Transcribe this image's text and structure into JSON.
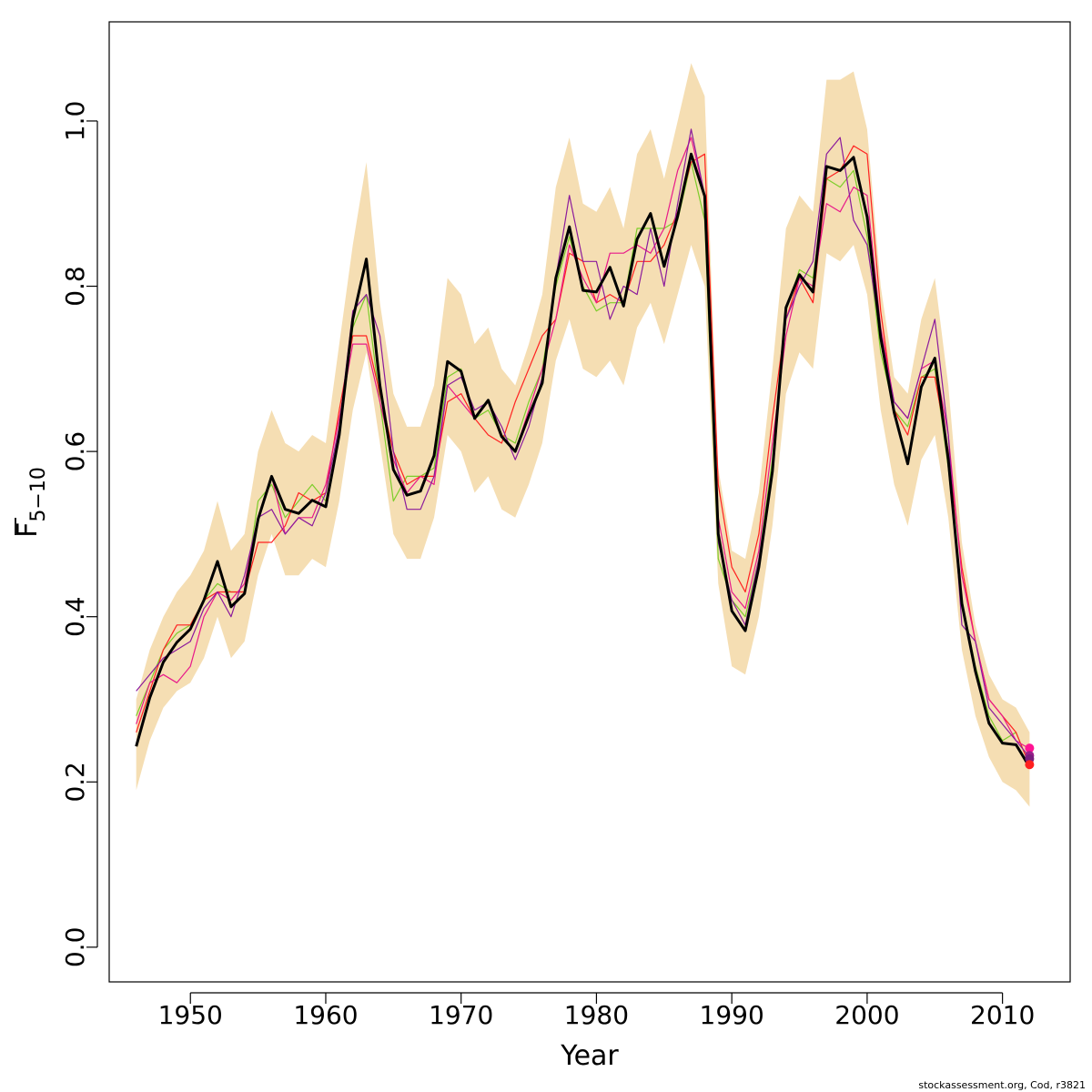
{
  "chart_data": {
    "type": "line",
    "xlabel": "Year",
    "ylabel": "F",
    "ylabel_subscript": "5−10",
    "xlim": [
      1944,
      2015
    ],
    "ylim": [
      -0.042,
      1.12
    ],
    "xticks": [
      1950,
      1960,
      1970,
      1980,
      1990,
      2000,
      2010
    ],
    "yticks": [
      0.0,
      0.2,
      0.4,
      0.6,
      0.8,
      1.0
    ],
    "xtick_labels": [
      "1950",
      "1960",
      "1970",
      "1980",
      "1990",
      "2000",
      "2010"
    ],
    "ytick_labels": [
      "0.0",
      "0.2",
      "0.4",
      "0.6",
      "0.8",
      "1.0"
    ],
    "grid": false,
    "credit": "stockassessment.org, Cod, r3821",
    "band_color": "#F5DEB3",
    "x": [
      1946,
      1947,
      1948,
      1949,
      1950,
      1951,
      1952,
      1953,
      1954,
      1955,
      1956,
      1957,
      1958,
      1959,
      1960,
      1961,
      1962,
      1963,
      1964,
      1965,
      1966,
      1967,
      1968,
      1969,
      1970,
      1971,
      1972,
      1973,
      1974,
      1975,
      1976,
      1977,
      1978,
      1979,
      1980,
      1981,
      1982,
      1983,
      1984,
      1985,
      1986,
      1987,
      1988,
      1989,
      1990,
      1991,
      1992,
      1993,
      1994,
      1995,
      1996,
      1997,
      1998,
      1999,
      2000,
      2001,
      2002,
      2003,
      2004,
      2005,
      2006,
      2007,
      2008,
      2009,
      2010,
      2011,
      2012
    ],
    "band_upper": [
      0.3,
      0.36,
      0.4,
      0.43,
      0.45,
      0.48,
      0.54,
      0.48,
      0.5,
      0.6,
      0.65,
      0.61,
      0.6,
      0.62,
      0.61,
      0.73,
      0.85,
      0.95,
      0.78,
      0.67,
      0.63,
      0.63,
      0.68,
      0.81,
      0.79,
      0.73,
      0.75,
      0.7,
      0.68,
      0.73,
      0.79,
      0.92,
      0.98,
      0.9,
      0.89,
      0.92,
      0.87,
      0.96,
      0.99,
      0.93,
      1.0,
      1.07,
      1.03,
      0.58,
      0.48,
      0.47,
      0.55,
      0.7,
      0.87,
      0.91,
      0.89,
      1.05,
      1.05,
      1.06,
      0.99,
      0.8,
      0.69,
      0.67,
      0.76,
      0.81,
      0.68,
      0.49,
      0.39,
      0.33,
      0.3,
      0.29,
      0.26
    ],
    "band_lower": [
      0.19,
      0.25,
      0.29,
      0.31,
      0.32,
      0.35,
      0.4,
      0.35,
      0.37,
      0.45,
      0.5,
      0.45,
      0.45,
      0.47,
      0.46,
      0.54,
      0.65,
      0.72,
      0.61,
      0.5,
      0.47,
      0.47,
      0.52,
      0.62,
      0.6,
      0.55,
      0.57,
      0.53,
      0.52,
      0.56,
      0.61,
      0.71,
      0.76,
      0.7,
      0.69,
      0.71,
      0.68,
      0.75,
      0.78,
      0.73,
      0.79,
      0.85,
      0.8,
      0.44,
      0.34,
      0.33,
      0.4,
      0.51,
      0.67,
      0.72,
      0.7,
      0.84,
      0.83,
      0.85,
      0.79,
      0.65,
      0.56,
      0.51,
      0.59,
      0.62,
      0.52,
      0.36,
      0.28,
      0.23,
      0.2,
      0.19,
      0.17
    ],
    "series": [
      {
        "color": "#000000",
        "width": 3,
        "values": [
          0.243,
          0.302,
          0.345,
          0.369,
          0.385,
          0.42,
          0.467,
          0.412,
          0.428,
          0.518,
          0.57,
          0.53,
          0.525,
          0.541,
          0.533,
          0.62,
          0.76,
          0.833,
          0.68,
          0.578,
          0.547,
          0.552,
          0.595,
          0.709,
          0.697,
          0.64,
          0.662,
          0.618,
          0.6,
          0.643,
          0.683,
          0.81,
          0.872,
          0.795,
          0.793,
          0.823,
          0.776,
          0.857,
          0.888,
          0.824,
          0.885,
          0.96,
          0.909,
          0.5,
          0.407,
          0.383,
          0.46,
          0.576,
          0.774,
          0.814,
          0.793,
          0.945,
          0.94,
          0.956,
          0.884,
          0.738,
          0.647,
          0.585,
          0.678,
          0.713,
          0.59,
          0.416,
          0.334,
          0.271,
          0.247,
          0.245,
          0.218
        ]
      },
      {
        "color": "#7CCD2A",
        "width": 1.2,
        "values": [
          0.28,
          0.32,
          0.36,
          0.38,
          0.39,
          0.42,
          0.44,
          0.43,
          0.43,
          0.54,
          0.56,
          0.52,
          0.54,
          0.56,
          0.54,
          0.62,
          0.75,
          0.79,
          0.66,
          0.54,
          0.57,
          0.57,
          0.58,
          0.69,
          0.7,
          0.64,
          0.65,
          0.62,
          0.61,
          0.66,
          0.7,
          0.8,
          0.86,
          0.8,
          0.77,
          0.78,
          0.78,
          0.87,
          0.87,
          0.87,
          0.88,
          0.95,
          0.88,
          0.47,
          0.42,
          0.4,
          0.47,
          0.59,
          0.77,
          0.82,
          0.81,
          0.93,
          0.92,
          0.94,
          0.86,
          0.72,
          0.65,
          0.63,
          0.69,
          0.7,
          0.58,
          0.42,
          0.34,
          0.28,
          0.25,
          0.26,
          0.22
        ]
      },
      {
        "color": "#FF2020",
        "width": 1.2,
        "values": [
          0.26,
          0.31,
          0.36,
          0.39,
          0.39,
          0.42,
          0.43,
          0.43,
          0.43,
          0.49,
          0.49,
          0.51,
          0.55,
          0.54,
          0.55,
          0.65,
          0.74,
          0.74,
          0.67,
          0.6,
          0.56,
          0.57,
          0.57,
          0.66,
          0.67,
          0.64,
          0.62,
          0.61,
          0.66,
          0.7,
          0.74,
          0.76,
          0.84,
          0.83,
          0.78,
          0.79,
          0.78,
          0.83,
          0.83,
          0.85,
          0.89,
          0.95,
          0.96,
          0.56,
          0.46,
          0.43,
          0.5,
          0.64,
          0.76,
          0.81,
          0.78,
          0.93,
          0.94,
          0.97,
          0.96,
          0.77,
          0.65,
          0.62,
          0.69,
          0.69,
          0.6,
          0.46,
          0.37,
          0.3,
          0.28,
          0.26,
          0.22
        ]
      },
      {
        "color": "#E8198A",
        "width": 1.2,
        "values": [
          0.27,
          0.32,
          0.33,
          0.32,
          0.34,
          0.4,
          0.43,
          0.42,
          0.44,
          0.52,
          0.57,
          0.5,
          0.52,
          0.52,
          0.56,
          0.64,
          0.73,
          0.73,
          0.66,
          0.59,
          0.55,
          0.57,
          0.56,
          0.68,
          0.66,
          0.64,
          0.66,
          0.62,
          0.6,
          0.65,
          0.7,
          0.76,
          0.85,
          0.81,
          0.78,
          0.84,
          0.84,
          0.85,
          0.84,
          0.87,
          0.94,
          0.98,
          0.91,
          0.52,
          0.43,
          0.41,
          0.48,
          0.61,
          0.74,
          0.81,
          0.8,
          0.9,
          0.89,
          0.92,
          0.91,
          0.75,
          0.66,
          0.64,
          0.7,
          0.71,
          0.62,
          0.45,
          0.37,
          0.3,
          0.28,
          0.25,
          0.24
        ]
      },
      {
        "color": "#8B1A9C",
        "width": 1.2,
        "values": [
          0.31,
          0.33,
          0.35,
          0.36,
          0.37,
          0.41,
          0.43,
          0.4,
          0.45,
          0.52,
          0.53,
          0.5,
          0.52,
          0.51,
          0.55,
          0.63,
          0.77,
          0.79,
          0.74,
          0.6,
          0.53,
          0.53,
          0.57,
          0.68,
          0.69,
          0.65,
          0.66,
          0.63,
          0.59,
          0.63,
          0.69,
          0.81,
          0.91,
          0.83,
          0.83,
          0.76,
          0.8,
          0.79,
          0.87,
          0.8,
          0.9,
          0.99,
          0.91,
          0.49,
          0.42,
          0.39,
          0.47,
          0.58,
          0.76,
          0.8,
          0.83,
          0.96,
          0.98,
          0.88,
          0.85,
          0.74,
          0.66,
          0.64,
          0.7,
          0.76,
          0.62,
          0.39,
          0.37,
          0.29,
          0.27,
          0.25,
          0.23
        ]
      }
    ],
    "endpoints": [
      {
        "color": "#FF1493",
        "value": 0.241
      },
      {
        "color": "#9A1F8A",
        "value": 0.232
      },
      {
        "color": "#7A1E7E",
        "value": 0.228
      },
      {
        "color": "#FF2020",
        "value": 0.221
      }
    ]
  }
}
